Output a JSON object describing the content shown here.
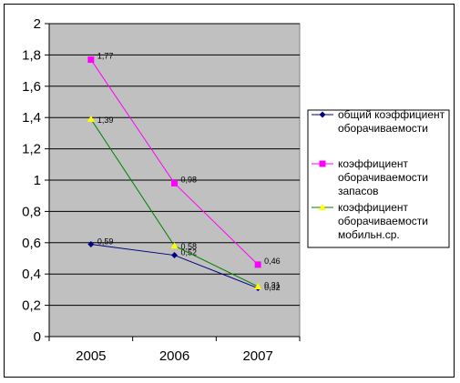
{
  "chart_data": {
    "type": "line",
    "title": "",
    "xlabel": "",
    "ylabel": "",
    "categories": [
      "2005",
      "2006",
      "2007"
    ],
    "ylim": [
      0,
      2
    ],
    "y_ticks": [
      "0",
      "0,2",
      "0,4",
      "0,6",
      "0,8",
      "1",
      "1,2",
      "1,4",
      "1,6",
      "1,8",
      "2"
    ],
    "grid": true,
    "legend_position": "right",
    "plot_background": "#c0c0c0",
    "series": [
      {
        "name_lines": [
          "общий коэффициент",
          "оборачиваемости"
        ],
        "values": [
          0.59,
          0.52,
          0.31
        ],
        "labels": [
          "0,59",
          "0,52",
          "0,31"
        ],
        "color": "#000080",
        "marker": "diamond"
      },
      {
        "name_lines": [
          "коэффициент",
          "оборачиваемости",
          "запасов"
        ],
        "values": [
          1.77,
          0.98,
          0.46
        ],
        "labels": [
          "1,77",
          "0,98",
          "0,46"
        ],
        "color": "#ff00ff",
        "marker": "square"
      },
      {
        "name_lines": [
          "коэффициент",
          "оборачиваемости",
          "мобильн.ср."
        ],
        "values": [
          1.39,
          0.58,
          0.32
        ],
        "labels": [
          "1,39",
          "0,58",
          "0,32"
        ],
        "color": "#008000",
        "marker_color": "#ffff00",
        "marker": "triangle"
      }
    ]
  }
}
